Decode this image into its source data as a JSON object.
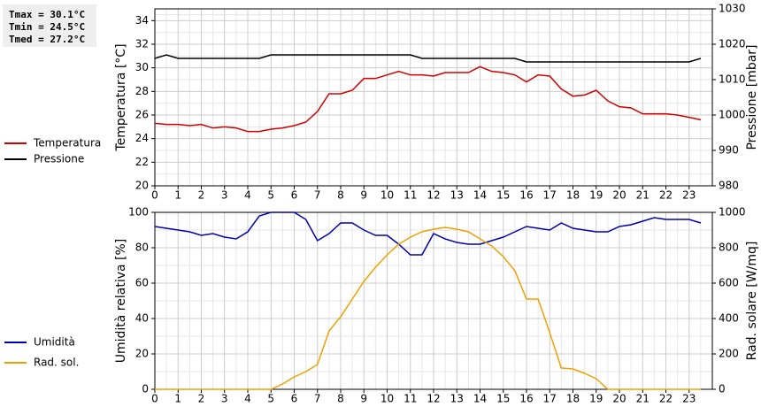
{
  "stats": [
    "Tmax = 30.1°C",
    "Tmin = 24.5°C",
    "Tmed = 27.2°C"
  ],
  "chart_data": [
    {
      "type": "line",
      "ylabel": "Temperatura [°C]",
      "y2label": "Pressione [mbar]",
      "x": [
        0,
        0.5,
        1,
        1.5,
        2,
        2.5,
        3,
        3.5,
        4,
        4.5,
        5,
        5.5,
        6,
        6.5,
        7,
        7.5,
        8,
        8.5,
        9,
        9.5,
        10,
        10.5,
        11,
        11.5,
        12,
        12.5,
        13,
        13.5,
        14,
        14.5,
        15,
        15.5,
        16,
        16.5,
        17,
        17.5,
        18,
        18.5,
        19,
        19.5,
        20,
        20.5,
        21,
        21.5,
        22,
        22.5,
        23,
        23.5
      ],
      "xlim": [
        0,
        24
      ],
      "xticks": [
        0,
        1,
        2,
        3,
        4,
        5,
        6,
        7,
        8,
        9,
        10,
        11,
        12,
        13,
        14,
        15,
        16,
        17,
        18,
        19,
        20,
        21,
        22,
        23
      ],
      "ylim": [
        20,
        35
      ],
      "yticks": [
        20,
        22,
        24,
        26,
        28,
        30,
        32,
        34
      ],
      "y2lim": [
        980,
        1030
      ],
      "y2ticks": [
        980,
        990,
        1000,
        1010,
        1020,
        1030
      ],
      "grid": true,
      "series": [
        {
          "name": "Temperatura",
          "color": "#d00000",
          "axis": "y",
          "values": [
            25.3,
            25.2,
            25.2,
            25.1,
            25.2,
            24.9,
            25.0,
            24.9,
            24.6,
            24.6,
            24.8,
            24.9,
            25.1,
            25.4,
            26.3,
            27.8,
            27.8,
            28.1,
            29.1,
            29.1,
            29.4,
            29.7,
            29.4,
            29.4,
            29.3,
            29.6,
            29.6,
            29.6,
            30.1,
            29.7,
            29.6,
            29.4,
            28.8,
            29.4,
            29.3,
            28.2,
            27.6,
            27.7,
            28.1,
            27.2,
            26.7,
            26.6,
            26.1,
            26.1,
            26.1,
            26.0,
            25.8,
            25.6
          ]
        },
        {
          "name": "Pressione",
          "color": "#000000",
          "axis": "y2",
          "values": [
            1016,
            1017,
            1016,
            1016,
            1016,
            1016,
            1016,
            1016,
            1016,
            1016,
            1017,
            1017,
            1017,
            1017,
            1017,
            1017,
            1017,
            1017,
            1017,
            1017,
            1017,
            1017,
            1017,
            1016,
            1016,
            1016,
            1016,
            1016,
            1016,
            1016,
            1016,
            1016,
            1015,
            1015,
            1015,
            1015,
            1015,
            1015,
            1015,
            1015,
            1015,
            1015,
            1015,
            1015,
            1015,
            1015,
            1015,
            1016
          ]
        }
      ]
    },
    {
      "type": "line",
      "ylabel": "Umidità relativa [%]",
      "y2label": "Rad. solare [W/mq]",
      "x": [
        0,
        0.5,
        1,
        1.5,
        2,
        2.5,
        3,
        3.5,
        4,
        4.5,
        5,
        5.5,
        6,
        6.5,
        7,
        7.5,
        8,
        8.5,
        9,
        9.5,
        10,
        10.5,
        11,
        11.5,
        12,
        12.5,
        13,
        13.5,
        14,
        14.5,
        15,
        15.5,
        16,
        16.5,
        17,
        17.5,
        18,
        18.5,
        19,
        19.5,
        20,
        20.5,
        21,
        21.5,
        22,
        22.5,
        23,
        23.5
      ],
      "xlim": [
        0,
        24
      ],
      "xticks": [
        0,
        1,
        2,
        3,
        4,
        5,
        6,
        7,
        8,
        9,
        10,
        11,
        12,
        13,
        14,
        15,
        16,
        17,
        18,
        19,
        20,
        21,
        22,
        23
      ],
      "ylim": [
        0,
        100
      ],
      "yticks": [
        0,
        20,
        40,
        60,
        80,
        100
      ],
      "y2lim": [
        0,
        1000
      ],
      "y2ticks": [
        0,
        200,
        400,
        600,
        800,
        1000
      ],
      "grid": true,
      "series": [
        {
          "name": "Umidità",
          "color": "#0000b0",
          "axis": "y",
          "values": [
            92,
            91,
            90,
            89,
            87,
            88,
            86,
            85,
            89,
            98,
            100,
            100,
            100,
            96,
            84,
            88,
            94,
            94,
            90,
            87,
            87,
            82,
            76,
            76,
            88,
            85,
            83,
            82,
            82,
            84,
            86,
            89,
            92,
            91,
            90,
            94,
            91,
            90,
            89,
            89,
            92,
            93,
            95,
            97,
            96,
            96,
            96,
            94
          ]
        },
        {
          "name": "Rad. sol.",
          "color": "#f0a000",
          "axis": "y2",
          "values": [
            0,
            0,
            0,
            0,
            0,
            0,
            0,
            0,
            0,
            0,
            0,
            30,
            70,
            100,
            140,
            330,
            410,
            510,
            610,
            690,
            760,
            820,
            860,
            890,
            905,
            915,
            905,
            890,
            850,
            810,
            750,
            670,
            510,
            510,
            320,
            120,
            115,
            90,
            60,
            0,
            0,
            0,
            0,
            0,
            0,
            0,
            0,
            0
          ]
        }
      ]
    }
  ]
}
